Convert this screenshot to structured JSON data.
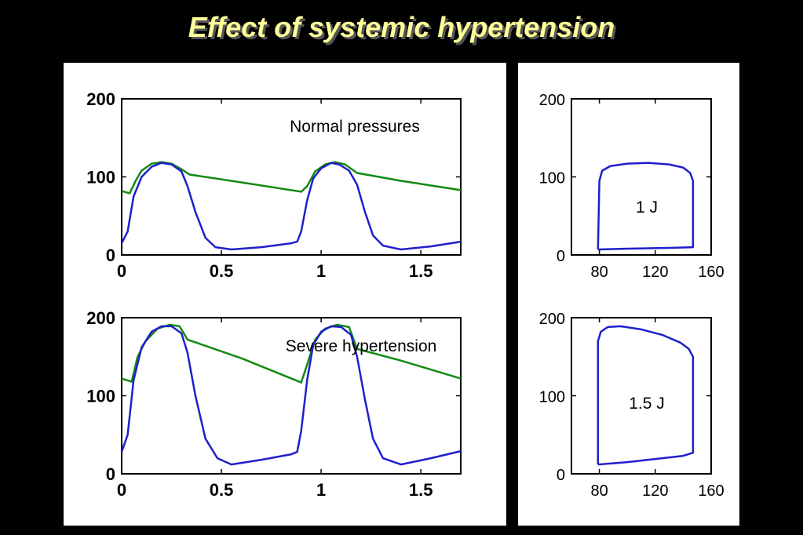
{
  "slide": {
    "title": "Effect of systemic hypertension"
  },
  "colors": {
    "background": "#000000",
    "title": "#ffff99",
    "ventricular": "#1f1fcc",
    "aortic": "#138a13"
  },
  "chart_data": [
    {
      "type": "line",
      "annotation": "Normal pressures",
      "xlim": [
        0,
        1.7
      ],
      "ylim": [
        0,
        200
      ],
      "xticks": [
        "0",
        "0.5",
        "1",
        "1.5"
      ],
      "yticks": [
        "0",
        "100",
        "200"
      ],
      "series": [
        {
          "color": "#1f1fcc",
          "points": [
            [
              0,
              15
            ],
            [
              0.03,
              30
            ],
            [
              0.06,
              75
            ],
            [
              0.1,
              100
            ],
            [
              0.15,
              113
            ],
            [
              0.2,
              118
            ],
            [
              0.25,
              116
            ],
            [
              0.3,
              107
            ],
            [
              0.33,
              88
            ],
            [
              0.37,
              55
            ],
            [
              0.42,
              22
            ],
            [
              0.47,
              10
            ],
            [
              0.55,
              7
            ],
            [
              0.7,
              10
            ],
            [
              0.85,
              15
            ],
            [
              0.88,
              17
            ],
            [
              0.9,
              30
            ],
            [
              0.93,
              70
            ],
            [
              0.96,
              98
            ],
            [
              1.0,
              111
            ],
            [
              1.05,
              118
            ],
            [
              1.09,
              116
            ],
            [
              1.14,
              108
            ],
            [
              1.18,
              90
            ],
            [
              1.22,
              55
            ],
            [
              1.26,
              25
            ],
            [
              1.31,
              12
            ],
            [
              1.4,
              7
            ],
            [
              1.55,
              11
            ],
            [
              1.7,
              17
            ]
          ]
        },
        {
          "color": "#138a13",
          "points": [
            [
              0,
              82
            ],
            [
              0.04,
              79
            ],
            [
              0.07,
              95
            ],
            [
              0.1,
              108
            ],
            [
              0.15,
              117
            ],
            [
              0.2,
              119
            ],
            [
              0.25,
              117
            ],
            [
              0.3,
              110
            ],
            [
              0.34,
              103
            ],
            [
              0.6,
              93
            ],
            [
              0.9,
              81
            ],
            [
              0.93,
              88
            ],
            [
              0.97,
              107
            ],
            [
              1.02,
              116
            ],
            [
              1.07,
              119
            ],
            [
              1.12,
              116
            ],
            [
              1.18,
              105
            ],
            [
              1.4,
              95
            ],
            [
              1.7,
              83
            ]
          ]
        }
      ]
    },
    {
      "type": "line",
      "annotation": "1 J",
      "xlim": [
        60,
        160
      ],
      "ylim": [
        0,
        200
      ],
      "xticks": [
        "80",
        "120",
        "160"
      ],
      "yticks": [
        "0",
        "100",
        "200"
      ],
      "series": [
        {
          "color": "#1f1fcc",
          "points": [
            [
              79,
              7
            ],
            [
              80,
              95
            ],
            [
              82,
              108
            ],
            [
              88,
              114
            ],
            [
              100,
              117
            ],
            [
              115,
              118
            ],
            [
              130,
              116
            ],
            [
              140,
              112
            ],
            [
              145,
              105
            ],
            [
              147,
              95
            ],
            [
              147,
              10
            ],
            [
              130,
              9
            ],
            [
              100,
              8
            ],
            [
              79,
              7
            ]
          ]
        }
      ]
    },
    {
      "type": "line",
      "annotation": "Severe hypertension",
      "xlim": [
        0,
        1.7
      ],
      "ylim": [
        0,
        200
      ],
      "xticks": [
        "0",
        "0.5",
        "1",
        "1.5"
      ],
      "yticks": [
        "0",
        "100",
        "200"
      ],
      "series": [
        {
          "color": "#1f1fcc",
          "points": [
            [
              0,
              28
            ],
            [
              0.03,
              50
            ],
            [
              0.06,
              120
            ],
            [
              0.1,
              162
            ],
            [
              0.15,
              182
            ],
            [
              0.2,
              189
            ],
            [
              0.25,
              189
            ],
            [
              0.3,
              180
            ],
            [
              0.33,
              155
            ],
            [
              0.37,
              100
            ],
            [
              0.42,
              45
            ],
            [
              0.48,
              20
            ],
            [
              0.55,
              12
            ],
            [
              0.7,
              18
            ],
            [
              0.85,
              25
            ],
            [
              0.88,
              28
            ],
            [
              0.9,
              55
            ],
            [
              0.93,
              120
            ],
            [
              0.96,
              165
            ],
            [
              1.0,
              182
            ],
            [
              1.05,
              189
            ],
            [
              1.1,
              188
            ],
            [
              1.15,
              178
            ],
            [
              1.18,
              150
            ],
            [
              1.22,
              95
            ],
            [
              1.26,
              45
            ],
            [
              1.31,
              20
            ],
            [
              1.4,
              12
            ],
            [
              1.55,
              20
            ],
            [
              1.7,
              29
            ]
          ]
        },
        {
          "color": "#138a13",
          "points": [
            [
              0,
              122
            ],
            [
              0.05,
              118
            ],
            [
              0.08,
              150
            ],
            [
              0.12,
              170
            ],
            [
              0.18,
              186
            ],
            [
              0.24,
              191
            ],
            [
              0.29,
              189
            ],
            [
              0.33,
              172
            ],
            [
              0.6,
              148
            ],
            [
              0.9,
              117
            ],
            [
              0.93,
              140
            ],
            [
              0.97,
              172
            ],
            [
              1.02,
              186
            ],
            [
              1.08,
              191
            ],
            [
              1.14,
              188
            ],
            [
              1.18,
              160
            ],
            [
              1.4,
              145
            ],
            [
              1.7,
              122
            ]
          ]
        }
      ]
    },
    {
      "type": "line",
      "annotation": "1.5 J",
      "xlim": [
        60,
        160
      ],
      "ylim": [
        0,
        200
      ],
      "xticks": [
        "80",
        "120",
        "160"
      ],
      "yticks": [
        "0",
        "100",
        "200"
      ],
      "series": [
        {
          "color": "#1f1fcc",
          "points": [
            [
              79,
              12
            ],
            [
              79,
              170
            ],
            [
              81,
              182
            ],
            [
              86,
              188
            ],
            [
              95,
              189
            ],
            [
              110,
              185
            ],
            [
              125,
              178
            ],
            [
              138,
              168
            ],
            [
              144,
              160
            ],
            [
              147,
              150
            ],
            [
              147,
              27
            ],
            [
              140,
              23
            ],
            [
              120,
              19
            ],
            [
              100,
              15
            ],
            [
              79,
              12
            ]
          ]
        }
      ]
    }
  ]
}
